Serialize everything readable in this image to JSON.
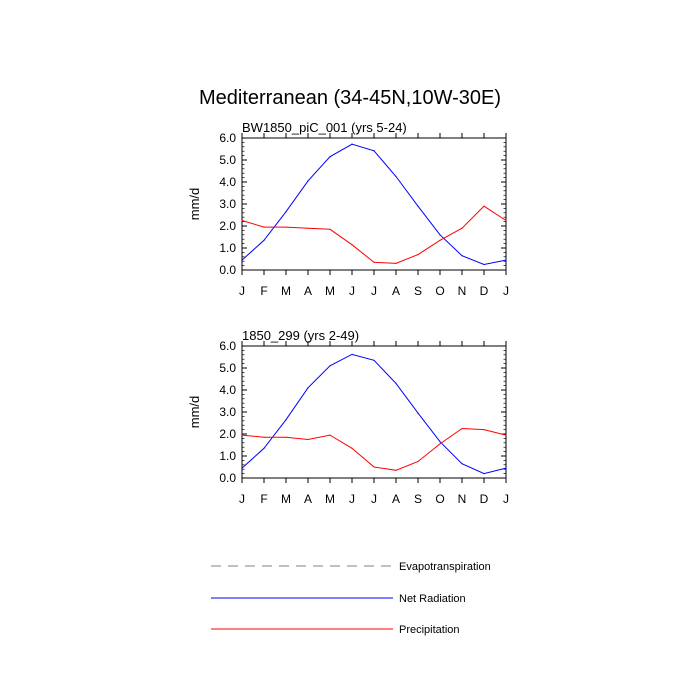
{
  "figure": {
    "title": "Mediterranean (34-45N,10W-30E)"
  },
  "legend": [
    {
      "label": "Evapotranspiration",
      "color": "#808080",
      "dash": true
    },
    {
      "label": "Net Radiation",
      "color": "#0000ff",
      "dash": false
    },
    {
      "label": "Precipitation",
      "color": "#ff0000",
      "dash": false
    }
  ],
  "chart_data": [
    {
      "type": "line",
      "title": "BW1850_piC_001 (yrs 5-24)",
      "ylabel": "mm/d",
      "xlabel": "",
      "categories": [
        "J",
        "F",
        "M",
        "A",
        "M",
        "J",
        "J",
        "A",
        "S",
        "O",
        "N",
        "D",
        "J"
      ],
      "ylim": [
        0,
        6
      ],
      "yticks": [
        "0.0",
        "1.0",
        "2.0",
        "3.0",
        "4.0",
        "5.0",
        "6.0"
      ],
      "series": [
        {
          "name": "Net Radiation",
          "color": "#0000ff",
          "values": [
            0.45,
            1.35,
            2.65,
            4.05,
            5.15,
            5.72,
            5.42,
            4.25,
            2.9,
            1.6,
            0.65,
            0.25,
            0.45
          ]
        },
        {
          "name": "Precipitation",
          "color": "#ff0000",
          "values": [
            2.25,
            1.95,
            1.95,
            1.9,
            1.85,
            1.15,
            0.35,
            0.3,
            0.7,
            1.35,
            1.9,
            2.9,
            2.25
          ]
        }
      ]
    },
    {
      "type": "line",
      "title": "1850_299 (yrs 2-49)",
      "ylabel": "mm/d",
      "xlabel": "",
      "categories": [
        "J",
        "F",
        "M",
        "A",
        "M",
        "J",
        "J",
        "A",
        "S",
        "O",
        "N",
        "D",
        "J"
      ],
      "ylim": [
        0,
        6
      ],
      "yticks": [
        "0.0",
        "1.0",
        "2.0",
        "3.0",
        "4.0",
        "5.0",
        "6.0"
      ],
      "series": [
        {
          "name": "Net Radiation",
          "color": "#0000ff",
          "values": [
            0.45,
            1.35,
            2.65,
            4.1,
            5.1,
            5.62,
            5.35,
            4.3,
            2.95,
            1.65,
            0.65,
            0.2,
            0.45
          ]
        },
        {
          "name": "Precipitation",
          "color": "#ff0000",
          "values": [
            1.95,
            1.85,
            1.85,
            1.75,
            1.95,
            1.35,
            0.5,
            0.35,
            0.75,
            1.55,
            2.25,
            2.2,
            1.95
          ]
        }
      ]
    }
  ]
}
